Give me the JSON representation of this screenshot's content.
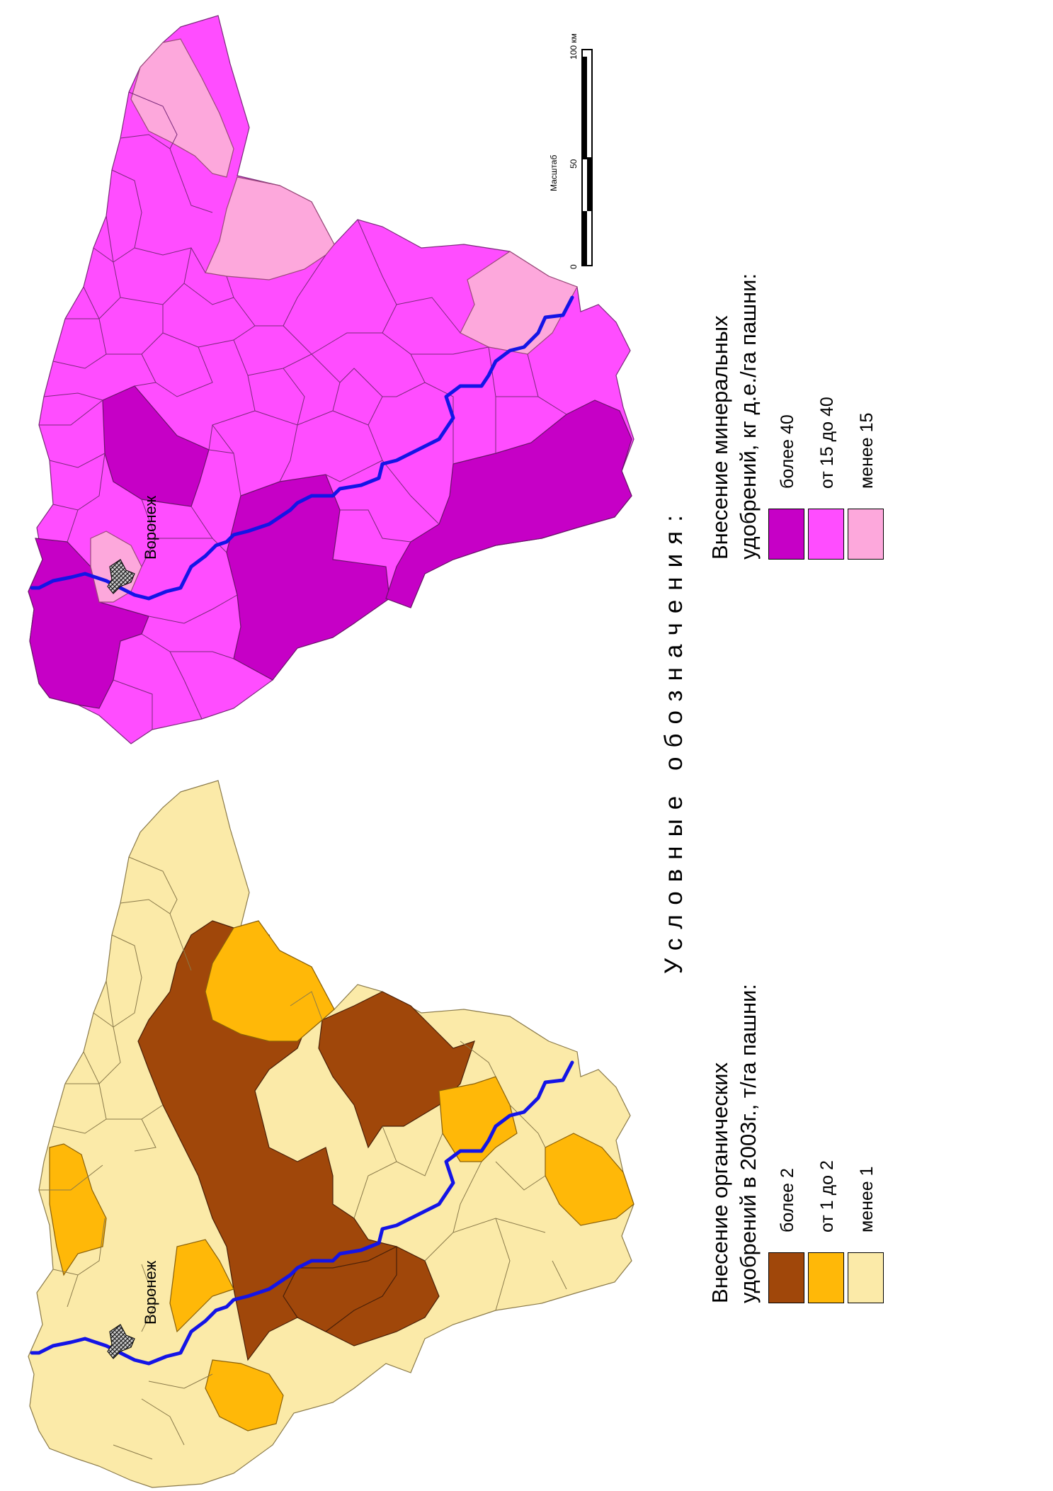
{
  "main_title": "Условные обозначения:",
  "city_label": "Воронеж",
  "maps": {
    "organic": {
      "legend_title_line1": "Внесение органических",
      "legend_title_line2": "удобрений в 2003г., т/га пашни:",
      "classes": [
        {
          "label": "более 2",
          "color": "#A0470A"
        },
        {
          "label": "от 1 до 2",
          "color": "#FFB808"
        },
        {
          "label": "менее 1",
          "color": "#FBEAA8"
        }
      ]
    },
    "mineral": {
      "legend_title_line1": "Внесение минеральных",
      "legend_title_line2": "удобрений, кг д.е./га пашни:",
      "classes": [
        {
          "label": "более 40",
          "color": "#C600C6"
        },
        {
          "label": "от 15 до 40",
          "color": "#FF4DFF"
        },
        {
          "label": "менее 15",
          "color": "#FDA8DC"
        }
      ]
    }
  },
  "scale": {
    "title": "Масштаб",
    "tick_0": "0",
    "tick_50": "50",
    "tick_100": "100 км"
  },
  "colors": {
    "river": "#1414E6",
    "border": "#7a7a7a"
  }
}
